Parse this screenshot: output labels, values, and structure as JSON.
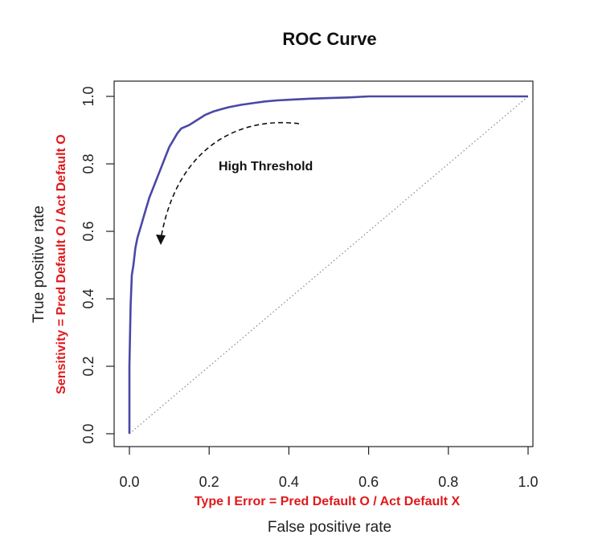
{
  "chart_data": {
    "type": "line",
    "title": "ROC Curve",
    "xlabel": "False positive rate",
    "ylabel": "True positive rate",
    "xlabel_secondary": "Type I Error = Pred Default O / Act Default X",
    "ylabel_secondary": "Sensitivity = Pred Default O / Act Default O",
    "xlim": [
      0,
      1
    ],
    "ylim": [
      0,
      1
    ],
    "x_ticks": [
      "0.0",
      "0.2",
      "0.4",
      "0.6",
      "0.8",
      "1.0"
    ],
    "y_ticks": [
      "0.0",
      "0.2",
      "0.4",
      "0.6",
      "0.8",
      "1.0"
    ],
    "grid": false,
    "legend": "none",
    "colors": {
      "curve": "#4a48a6",
      "diagonal": "#888888",
      "secondary_labels": "#e0191b"
    },
    "series": [
      {
        "x": [
          0.0,
          0.0,
          0.003,
          0.006,
          0.01,
          0.015,
          0.02,
          0.03,
          0.04,
          0.05,
          0.06,
          0.07,
          0.08,
          0.09,
          0.1,
          0.11,
          0.12,
          0.13,
          0.15,
          0.17,
          0.19,
          0.21,
          0.23,
          0.25,
          0.28,
          0.31,
          0.34,
          0.37,
          0.4,
          0.45,
          0.5,
          0.55,
          0.6,
          0.7,
          0.8,
          0.9,
          1.0
        ],
        "y": [
          0.0,
          0.2,
          0.38,
          0.47,
          0.5,
          0.55,
          0.58,
          0.62,
          0.66,
          0.7,
          0.73,
          0.76,
          0.79,
          0.82,
          0.85,
          0.87,
          0.89,
          0.905,
          0.915,
          0.93,
          0.945,
          0.955,
          0.962,
          0.968,
          0.975,
          0.98,
          0.985,
          0.988,
          0.99,
          0.993,
          0.995,
          0.997,
          1.0,
          1.0,
          1.0,
          1.0,
          1.0
        ]
      },
      {
        "style": "dotted",
        "x": [
          0,
          1
        ],
        "y": [
          0,
          1
        ]
      }
    ],
    "annotations": [
      {
        "text": "High Threshold"
      }
    ]
  }
}
